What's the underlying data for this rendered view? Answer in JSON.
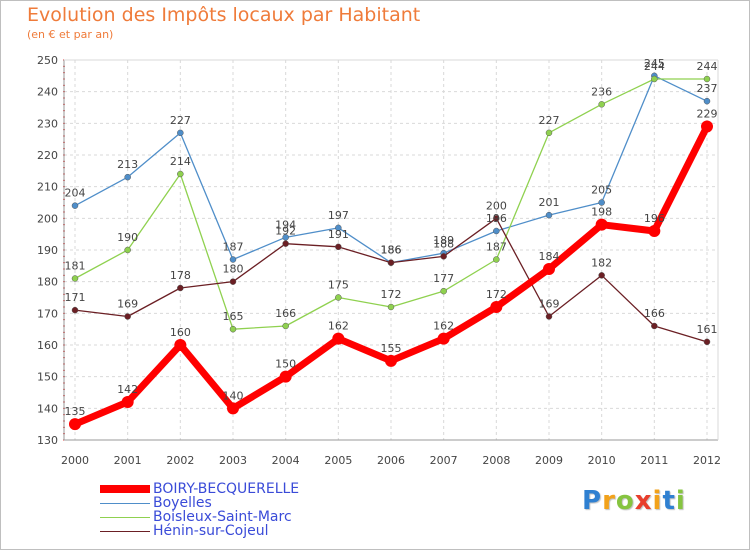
{
  "header": {
    "title": "Evolution des Impôts locaux par Habitant",
    "subtitle": "(en € et par an)"
  },
  "chart_data": {
    "type": "line",
    "title": "Evolution des Impôts locaux par Habitant",
    "subtitle": "(en € et par an)",
    "xlabel": "",
    "ylabel": "",
    "ylim": [
      130,
      250
    ],
    "yticks": [
      130,
      140,
      150,
      160,
      170,
      180,
      190,
      200,
      210,
      220,
      230,
      240,
      250
    ],
    "grid": true,
    "legend_position": "bottom-left",
    "categories": [
      "2000",
      "2001",
      "2002",
      "2003",
      "2004",
      "2005",
      "2006",
      "2007",
      "2008",
      "2009",
      "2010",
      "2011",
      "2012"
    ],
    "series": [
      {
        "name": "Boyelles",
        "color": "#4f8ec9",
        "values": [
          204,
          213,
          227,
          187,
          194,
          197,
          186,
          189,
          196,
          201,
          205,
          245,
          237
        ]
      },
      {
        "name": "Boisleux-Saint-Marc",
        "color": "#8fd14f",
        "values": [
          181,
          190,
          214,
          165,
          166,
          175,
          172,
          177,
          187,
          227,
          236,
          244,
          244
        ]
      },
      {
        "name": "Hénin-sur-Cojeul",
        "color": "#6b1f24",
        "values": [
          171,
          169,
          178,
          180,
          192,
          191,
          186,
          188,
          200,
          169,
          182,
          166,
          161
        ]
      },
      {
        "name": "BOIRY-BECQUERELLE",
        "color": "#ff0000",
        "values": [
          135,
          142,
          160,
          140,
          150,
          162,
          155,
          162,
          172,
          184,
          198,
          196,
          229
        ]
      }
    ]
  },
  "legend": {
    "items": [
      {
        "label": "BOIRY-BECQUERELLE",
        "color": "#ff0000"
      },
      {
        "label": "Boyelles",
        "color": "#4f8ec9"
      },
      {
        "label": "Boisleux-Saint-Marc",
        "color": "#8fd14f"
      },
      {
        "label": "Hénin-sur-Cojeul",
        "color": "#6b1f24"
      }
    ]
  },
  "logo": {
    "letters": [
      "P",
      "r",
      "o",
      "x",
      "i",
      "t",
      "i"
    ],
    "colors": [
      "#2f80d1",
      "#f2a21b",
      "#86c440",
      "#e83e2c",
      "#f2a21b",
      "#2f80d1",
      "#86c440"
    ]
  }
}
